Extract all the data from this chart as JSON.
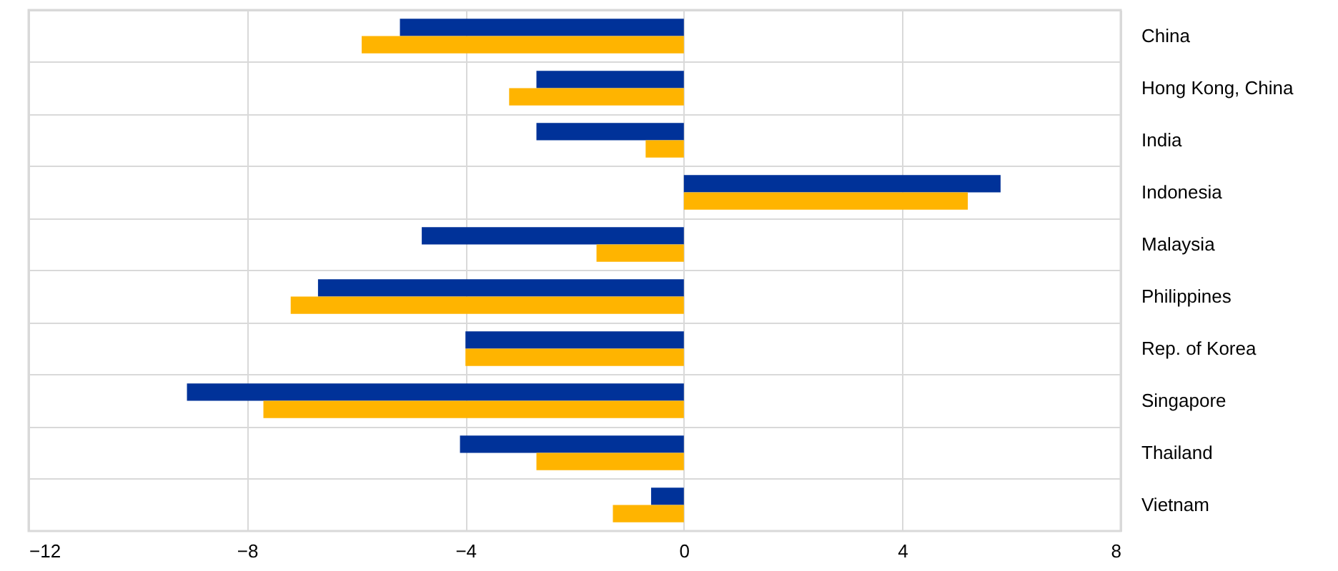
{
  "chart_data": {
    "type": "bar",
    "orientation": "horizontal",
    "categories": [
      "China",
      "Hong Kong, China",
      "India",
      "Indonesia",
      "Malaysia",
      "Philippines",
      "Rep. of Korea",
      "Singapore",
      "Thailand",
      "Vietnam"
    ],
    "series": [
      {
        "color": "#003299",
        "values": [
          -5.2,
          -2.7,
          -2.7,
          5.8,
          -4.8,
          -6.7,
          -4.0,
          -9.1,
          -4.1,
          -0.6
        ]
      },
      {
        "color": "#ffb400",
        "values": [
          -5.9,
          -3.2,
          -0.7,
          5.2,
          -1.6,
          -7.2,
          -4.0,
          -7.7,
          -2.7,
          -1.3
        ]
      }
    ],
    "xlim": [
      -12,
      8
    ],
    "xticks": [
      -12,
      -8,
      -4,
      0,
      4,
      8
    ],
    "grid": true,
    "legend": false
  }
}
